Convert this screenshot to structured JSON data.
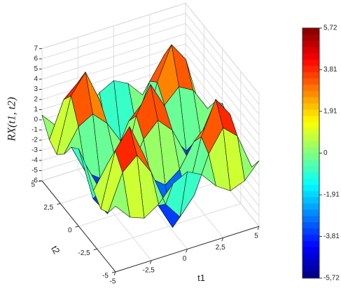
{
  "chart_data": {
    "type": "surface",
    "zlabel": "RX(t1, t2)",
    "xlabel": "t1",
    "ylabel": "t2",
    "colormap": "jet",
    "x": [
      -5,
      -4,
      -3,
      -2,
      -1,
      0,
      1,
      2,
      3,
      4,
      5
    ],
    "y": [
      -5,
      -4,
      -3,
      -2,
      -1,
      0,
      1,
      2,
      3,
      4,
      5
    ],
    "z": [
      [
        0.46,
        -1.06,
        -1.61,
        -0.68,
        0.88,
        1.62,
        0.88,
        -0.68,
        -1.61,
        -1.06,
        0.46
      ],
      [
        -1.06,
        2.44,
        3.7,
        1.56,
        -2.02,
        -3.74,
        -2.02,
        1.56,
        3.7,
        2.44,
        -1.06
      ],
      [
        -1.61,
        3.7,
        5.61,
        2.36,
        -3.06,
        -5.66,
        -3.06,
        2.36,
        5.61,
        3.7,
        -1.61
      ],
      [
        -0.68,
        1.56,
        2.36,
        0.99,
        -1.29,
        -2.38,
        -1.29,
        0.99,
        2.36,
        1.56,
        -0.68
      ],
      [
        0.88,
        -2.02,
        -3.06,
        -1.29,
        1.67,
        3.09,
        1.67,
        -1.29,
        -3.06,
        -2.02,
        0.88
      ],
      [
        1.62,
        -3.74,
        -5.66,
        -2.38,
        3.09,
        5.72,
        3.09,
        -2.38,
        -5.66,
        -3.74,
        1.62
      ],
      [
        0.88,
        -2.02,
        -3.06,
        -1.29,
        1.67,
        3.09,
        1.67,
        -1.29,
        -3.06,
        -2.02,
        0.88
      ],
      [
        -0.68,
        1.56,
        2.36,
        0.99,
        -1.29,
        -2.38,
        -1.29,
        0.99,
        2.36,
        1.56,
        -0.68
      ],
      [
        -1.61,
        3.7,
        5.61,
        2.36,
        -3.06,
        -5.66,
        -3.06,
        2.36,
        5.61,
        3.7,
        -1.61
      ],
      [
        -1.06,
        2.44,
        3.7,
        1.56,
        -2.02,
        -3.74,
        -2.02,
        1.56,
        3.7,
        2.44,
        -1.06
      ],
      [
        0.46,
        -1.06,
        -1.61,
        -0.68,
        0.88,
        1.62,
        0.88,
        -0.68,
        -1.61,
        -1.06,
        0.46
      ]
    ],
    "xlim": [
      -5,
      5
    ],
    "ylim": [
      -5,
      5
    ],
    "zlim": [
      -6,
      7
    ],
    "xticks": [
      -5,
      {
        "value": -2.5,
        "label": "-2,5"
      },
      0,
      {
        "value": 2.5,
        "label": "2,5"
      },
      5
    ],
    "yticks": [
      -5,
      {
        "value": -2.5,
        "label": "-2,5"
      },
      0,
      {
        "value": 2.5,
        "label": "2,5"
      },
      5
    ],
    "zticks": [
      -6,
      -5,
      -4,
      -3,
      -2,
      -1,
      0,
      1,
      2,
      3,
      4,
      5,
      6,
      7
    ],
    "colorbar": {
      "lim": [
        -5.72,
        5.72
      ],
      "ticks": [
        {
          "value": 5.72,
          "label": "5,72"
        },
        {
          "value": 3.81,
          "label": "3,81"
        },
        {
          "value": 1.91,
          "label": "1,91"
        },
        0,
        {
          "value": -1.91,
          "label": "-1,91"
        },
        {
          "value": -3.81,
          "label": "-3,81"
        },
        {
          "value": -5.72,
          "label": "-5,72"
        }
      ]
    }
  }
}
